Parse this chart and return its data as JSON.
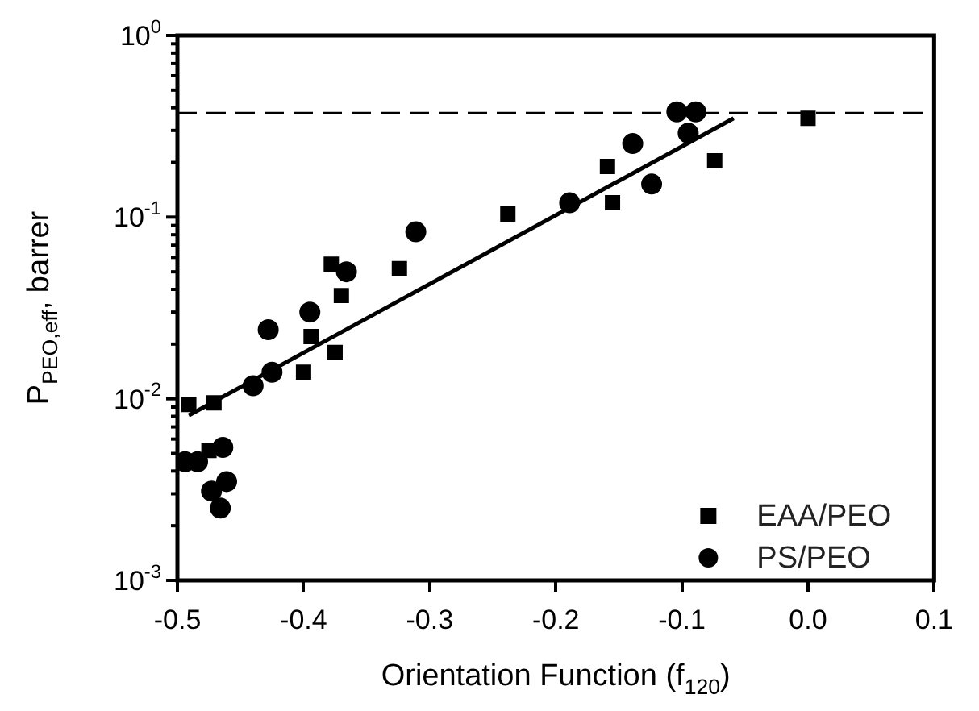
{
  "chart_data": {
    "type": "scatter",
    "xlabel": "Orientation Function (f$_{120}$)",
    "ylabel": "P$_{PEO,eff}$, barrer",
    "log": "y",
    "xlim": [
      -0.5,
      0.1
    ],
    "xticks": [
      -0.5,
      -0.4,
      -0.3,
      -0.2,
      -0.1,
      {
        "value": 0,
        "label": "0.0"
      },
      0.1
    ],
    "ylim": [
      0.001,
      1
    ],
    "yticks": [
      {
        "value": 0.001,
        "label": "10$^{-3}$"
      },
      {
        "value": 0.002,
        "label": null
      },
      {
        "value": 0.003,
        "label": null
      },
      {
        "value": 0.004,
        "label": null
      },
      {
        "value": 0.005,
        "label": null
      },
      {
        "value": 0.006,
        "label": null
      },
      {
        "value": 0.007,
        "label": null
      },
      {
        "value": 0.008,
        "label": null
      },
      {
        "value": 0.009,
        "label": null
      },
      {
        "value": 0.01,
        "label": "10$^{-2}$"
      },
      {
        "value": 0.02,
        "label": null
      },
      {
        "value": 0.03,
        "label": null
      },
      {
        "value": 0.04,
        "label": null
      },
      {
        "value": 0.05,
        "label": null
      },
      {
        "value": 0.06,
        "label": null
      },
      {
        "value": 0.07,
        "label": null
      },
      {
        "value": 0.08,
        "label": null
      },
      {
        "value": 0.09,
        "label": null
      },
      {
        "value": 0.1,
        "label": "10$^{-1}$"
      },
      {
        "value": 0.2,
        "label": null
      },
      {
        "value": 0.3,
        "label": null
      },
      {
        "value": 0.4,
        "label": null
      },
      {
        "value": 0.5,
        "label": null
      },
      {
        "value": 0.6,
        "label": null
      },
      {
        "value": 0.7,
        "label": null
      },
      {
        "value": 0.8,
        "label": null
      },
      {
        "value": 0.9,
        "label": null
      },
      {
        "value": 1,
        "label": "10$^{0}$"
      }
    ],
    "legend": "bottom right",
    "grid": false,
    "ref_lines": [
      {
        "axis": "y",
        "value": 0.375,
        "color": "#000000",
        "line_style": "dashed"
      }
    ],
    "series": [
      {
        "name": "EAA/PEO",
        "color": "#000000",
        "marker": "square",
        "x": [
          -0.491,
          -0.471,
          -0.475,
          -0.378,
          -0.37,
          -0.394,
          -0.375,
          -0.4,
          -0.324,
          -0.238,
          -0.159,
          -0.155,
          -0.074,
          0.0
        ],
        "values": [
          0.0093,
          0.0095,
          0.0052,
          0.055,
          0.037,
          0.022,
          0.018,
          0.014,
          0.052,
          0.104,
          0.19,
          0.12,
          0.204,
          0.35
        ]
      },
      {
        "name": "PS/PEO",
        "color": "#000000",
        "marker": "circle",
        "x": [
          -0.494,
          -0.484,
          -0.464,
          -0.473,
          -0.461,
          -0.466,
          -0.44,
          -0.425,
          -0.428,
          -0.395,
          -0.366,
          -0.311,
          -0.189,
          -0.139,
          -0.124,
          -0.104,
          -0.089,
          -0.095
        ],
        "values": [
          0.0045,
          0.0045,
          0.0054,
          0.0031,
          0.0035,
          0.0025,
          0.0118,
          0.014,
          0.024,
          0.03,
          0.05,
          0.083,
          0.12,
          0.254,
          0.152,
          0.38,
          0.38,
          0.29
        ]
      },
      {
        "type": "line",
        "color": "#000000",
        "marker": "none",
        "line_style": "solid",
        "x": [
          -0.491,
          -0.059
        ],
        "values": [
          0.0081,
          0.35
        ]
      }
    ]
  }
}
